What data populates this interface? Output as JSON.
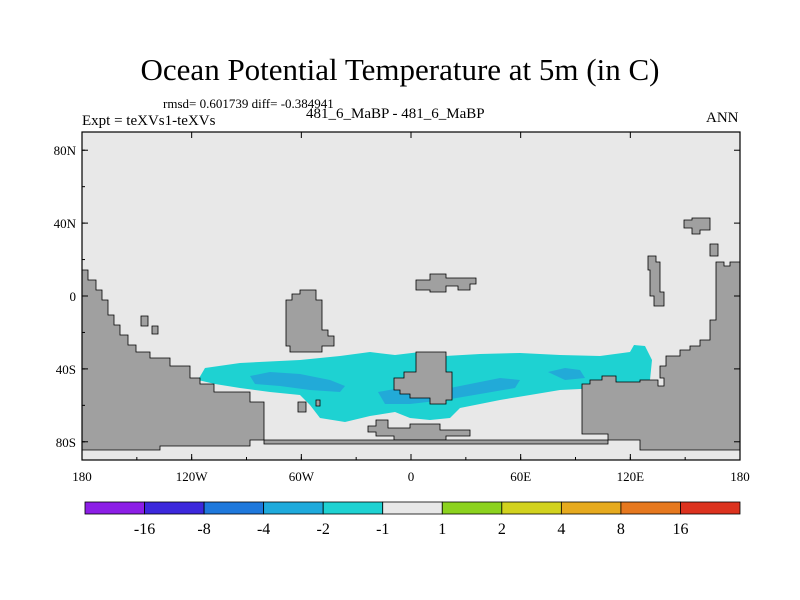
{
  "header": {
    "title": "Ocean Potential Temperature at 5m (in C)",
    "stats": "rmsd= 0.601739 diff= -0.384941",
    "experiment": "Expt = teXVs1-teXVs",
    "center_label": "481_6_MaBP - 481_6_MaBP",
    "season": "ANN"
  },
  "map": {
    "lon_range": [
      -180,
      180
    ],
    "lat_range": [
      -90,
      90
    ],
    "lat_ticks": [
      {
        "value": 80,
        "label": "80N"
      },
      {
        "value": 40,
        "label": "40N"
      },
      {
        "value": 0,
        "label": "0"
      },
      {
        "value": -40,
        "label": "40S"
      },
      {
        "value": -80,
        "label": "80S"
      }
    ],
    "lon_ticks": [
      {
        "value": -180,
        "label": "180"
      },
      {
        "value": -120,
        "label": "120W"
      },
      {
        "value": -60,
        "label": "60W"
      },
      {
        "value": 0,
        "label": "0"
      },
      {
        "value": 60,
        "label": "60E"
      },
      {
        "value": 120,
        "label": "120E"
      },
      {
        "value": 180,
        "label": "180"
      }
    ],
    "colors": {
      "ocean_background": "#e8e8e8",
      "land": "#a0a0a0",
      "anomaly_minus1_to_minus2": "#1ed2d2",
      "anomaly_minus2_to_minus4": "#22aad8"
    }
  },
  "colorbar": {
    "colors": [
      "#8c1ee6",
      "#3c28dc",
      "#1e78dc",
      "#1eaadc",
      "#1ed2d2",
      "#e8e8e8",
      "#8cd21e",
      "#d2d21e",
      "#e6aa1e",
      "#e6781e",
      "#dc321e"
    ],
    "labels": [
      "-16",
      "-8",
      "-4",
      "-2",
      "-1",
      "1",
      "2",
      "4",
      "8",
      "16"
    ]
  }
}
